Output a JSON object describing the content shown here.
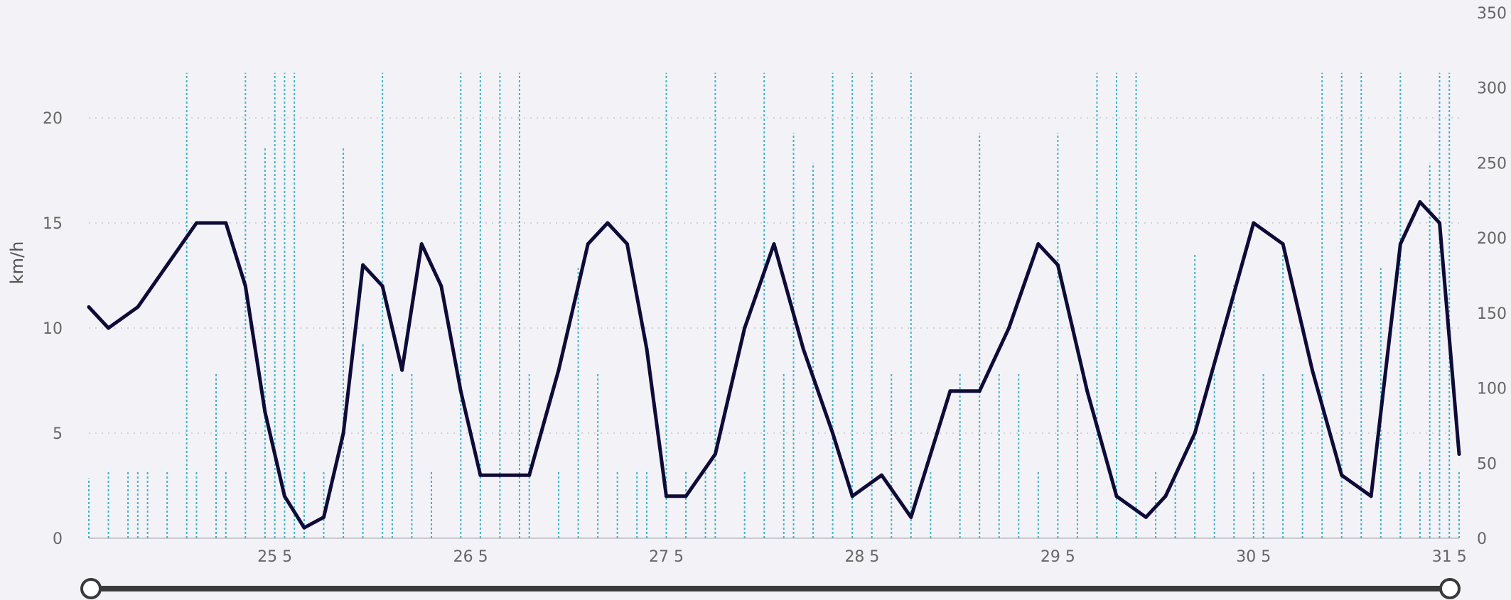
{
  "colors": {
    "background": "#f3f3f7",
    "speed_line": "#0e0b38",
    "secondary_series": "#3bb6c9",
    "gridline": "#c8c8d0",
    "tick_text": "#666666",
    "slider_track": "#3a3a3a",
    "slider_handle_fill": "#ffffff"
  },
  "chart_data": {
    "type": "line",
    "title": "",
    "xlabel": "",
    "ylabel": "km/h",
    "y2label": "",
    "x_ticks": [
      "25 5",
      "26 5",
      "27 5",
      "28 5",
      "29 5",
      "30 5",
      "31 5"
    ],
    "ylim": [
      0,
      25
    ],
    "y_ticks": [
      "0",
      "5",
      "10",
      "15",
      "20"
    ],
    "y2lim": [
      0,
      350
    ],
    "y2_ticks": [
      "0",
      "50",
      "100",
      "150",
      "200",
      "250",
      "300",
      "350"
    ],
    "grid": "horizontal dotted",
    "legend": "none",
    "x_range_days": [
      24.05,
      31.05
    ],
    "series": [
      {
        "axis": "left",
        "style": "solid dark line",
        "x_days": [
          24.05,
          24.15,
          24.3,
          24.45,
          24.6,
          24.75,
          24.85,
          24.95,
          25.05,
          25.15,
          25.25,
          25.35,
          25.45,
          25.55,
          25.65,
          25.75,
          25.85,
          25.95,
          26.05,
          26.15,
          26.3,
          26.45,
          26.6,
          26.7,
          26.8,
          26.9,
          27.0,
          27.1,
          27.25,
          27.4,
          27.55,
          27.7,
          27.85,
          27.95,
          28.1,
          28.25,
          28.45,
          28.6,
          28.75,
          28.9,
          29.0,
          29.15,
          29.3,
          29.45,
          29.55,
          29.7,
          29.85,
          30.0,
          30.15,
          30.3,
          30.45,
          30.6,
          30.75,
          30.85,
          30.95,
          31.05
        ],
        "values": [
          11,
          10,
          11,
          13,
          15,
          15,
          12,
          6,
          2,
          0.5,
          1,
          5,
          13,
          12,
          8,
          14,
          12,
          7,
          3,
          3,
          3,
          8,
          14,
          15,
          14,
          9,
          2,
          2,
          4,
          10,
          14,
          9,
          5,
          2,
          3,
          1,
          7,
          7,
          10,
          14,
          13,
          7,
          2,
          1,
          2,
          5,
          10,
          15,
          14,
          8,
          3,
          2,
          14,
          16,
          15,
          4
        ]
      },
      {
        "axis": "right",
        "style": "dotted cyan vertical spikes",
        "x_days": [
          24.05,
          24.15,
          24.25,
          24.3,
          24.35,
          24.45,
          24.55,
          24.6,
          24.7,
          24.75,
          24.85,
          24.95,
          25.0,
          25.05,
          25.1,
          25.15,
          25.25,
          25.35,
          25.45,
          25.55,
          25.6,
          25.7,
          25.8,
          25.95,
          26.05,
          26.15,
          26.25,
          26.3,
          26.45,
          26.55,
          26.65,
          26.75,
          26.85,
          26.9,
          27.0,
          27.1,
          27.2,
          27.25,
          27.4,
          27.5,
          27.6,
          27.65,
          27.75,
          27.85,
          27.95,
          28.05,
          28.15,
          28.25,
          28.35,
          28.5,
          28.6,
          28.7,
          28.8,
          28.9,
          29.0,
          29.1,
          29.2,
          29.3,
          29.4,
          29.5,
          29.6,
          29.7,
          29.8,
          29.9,
          30.0,
          30.05,
          30.15,
          30.25,
          30.35,
          30.45,
          30.55,
          30.65,
          30.75,
          30.85,
          30.9,
          30.95,
          31.0,
          31.05
        ],
        "values": [
          40,
          45,
          45,
          45,
          45,
          45,
          310,
          45,
          110,
          45,
          310,
          260,
          310,
          310,
          310,
          45,
          45,
          260,
          130,
          310,
          110,
          110,
          45,
          310,
          310,
          310,
          310,
          110,
          45,
          180,
          110,
          45,
          45,
          45,
          310,
          45,
          45,
          310,
          45,
          310,
          110,
          270,
          250,
          310,
          310,
          310,
          110,
          310,
          45,
          110,
          270,
          110,
          110,
          45,
          270,
          110,
          310,
          310,
          310,
          45,
          45,
          190,
          110,
          170,
          45,
          110,
          190,
          110,
          310,
          310,
          310,
          180,
          310,
          45,
          250,
          310,
          310,
          45
        ]
      }
    ]
  },
  "slider": {
    "start": 0.0,
    "end": 1.0
  }
}
